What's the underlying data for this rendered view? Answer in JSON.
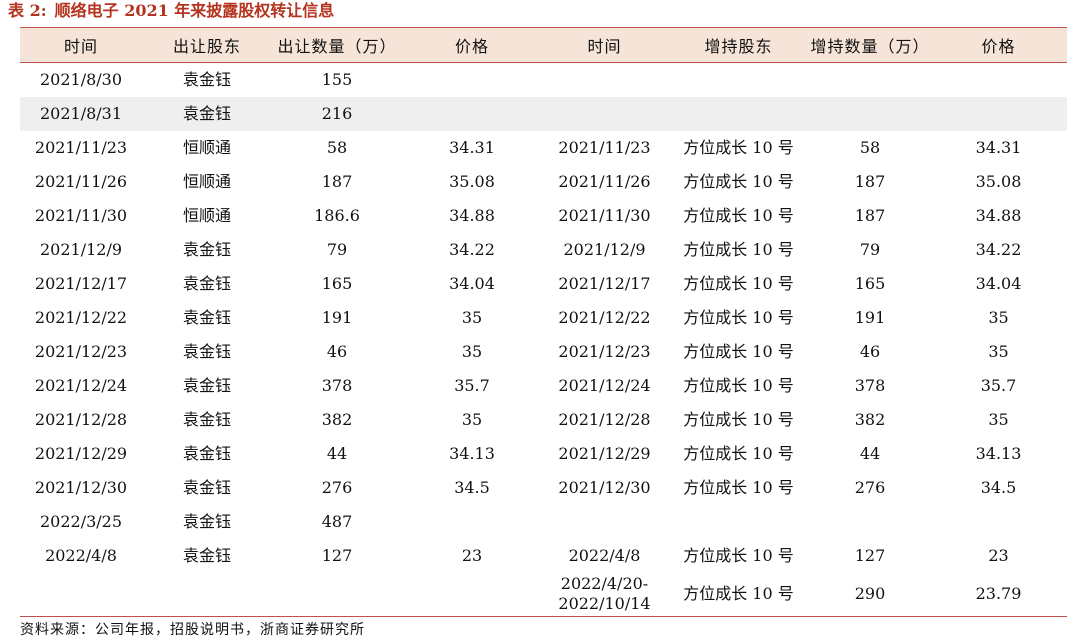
{
  "caption": {
    "label": "表 2:",
    "title": "顺络电子 2021 年来披露股权转让信息"
  },
  "table": {
    "headers": [
      "时间",
      "出让股东",
      "出让数量（万）",
      "价格",
      "时间",
      "增持股东",
      "增持数量（万）",
      "价格"
    ],
    "rows": [
      [
        "2021/8/30",
        "袁金钰",
        "155",
        "",
        "",
        "",
        "",
        ""
      ],
      [
        "2021/8/31",
        "袁金钰",
        "216",
        "",
        "",
        "",
        "",
        ""
      ],
      [
        "2021/11/23",
        "恒顺通",
        "58",
        "34.31",
        "2021/11/23",
        "方位成长 10 号",
        "58",
        "34.31"
      ],
      [
        "2021/11/26",
        "恒顺通",
        "187",
        "35.08",
        "2021/11/26",
        "方位成长 10 号",
        "187",
        "35.08"
      ],
      [
        "2021/11/30",
        "恒顺通",
        "186.6",
        "34.88",
        "2021/11/30",
        "方位成长 10 号",
        "187",
        "34.88"
      ],
      [
        "2021/12/9",
        "袁金钰",
        "79",
        "34.22",
        "2021/12/9",
        "方位成长 10 号",
        "79",
        "34.22"
      ],
      [
        "2021/12/17",
        "袁金钰",
        "165",
        "34.04",
        "2021/12/17",
        "方位成长 10 号",
        "165",
        "34.04"
      ],
      [
        "2021/12/22",
        "袁金钰",
        "191",
        "35",
        "2021/12/22",
        "方位成长 10 号",
        "191",
        "35"
      ],
      [
        "2021/12/23",
        "袁金钰",
        "46",
        "35",
        "2021/12/23",
        "方位成长 10 号",
        "46",
        "35"
      ],
      [
        "2021/12/24",
        "袁金钰",
        "378",
        "35.7",
        "2021/12/24",
        "方位成长 10 号",
        "378",
        "35.7"
      ],
      [
        "2021/12/28",
        "袁金钰",
        "382",
        "35",
        "2021/12/28",
        "方位成长 10 号",
        "382",
        "35"
      ],
      [
        "2021/12/29",
        "袁金钰",
        "44",
        "34.13",
        "2021/12/29",
        "方位成长 10 号",
        "44",
        "34.13"
      ],
      [
        "2021/12/30",
        "袁金钰",
        "276",
        "34.5",
        "2021/12/30",
        "方位成长 10 号",
        "276",
        "34.5"
      ],
      [
        "2022/3/25",
        "袁金钰",
        "487",
        "",
        "",
        "",
        "",
        ""
      ],
      [
        "2022/4/8",
        "袁金钰",
        "127",
        "23",
        "2022/4/8",
        "方位成长 10 号",
        "127",
        "23"
      ]
    ],
    "last_row": {
      "cells": [
        "",
        "",
        "",
        ""
      ],
      "date_line1": "2022/4/20-",
      "date_line2": "2022/10/14",
      "holder": "方位成长 10 号",
      "amount": "290",
      "price": "23.79"
    }
  },
  "source": "资料来源：公司年报，招股说明书，浙商证券研究所",
  "colors": {
    "caption": "#b5341f",
    "header_bg": "#f7e4d8",
    "rule": "#c0504d",
    "alt_row_bg": "#efefef"
  }
}
